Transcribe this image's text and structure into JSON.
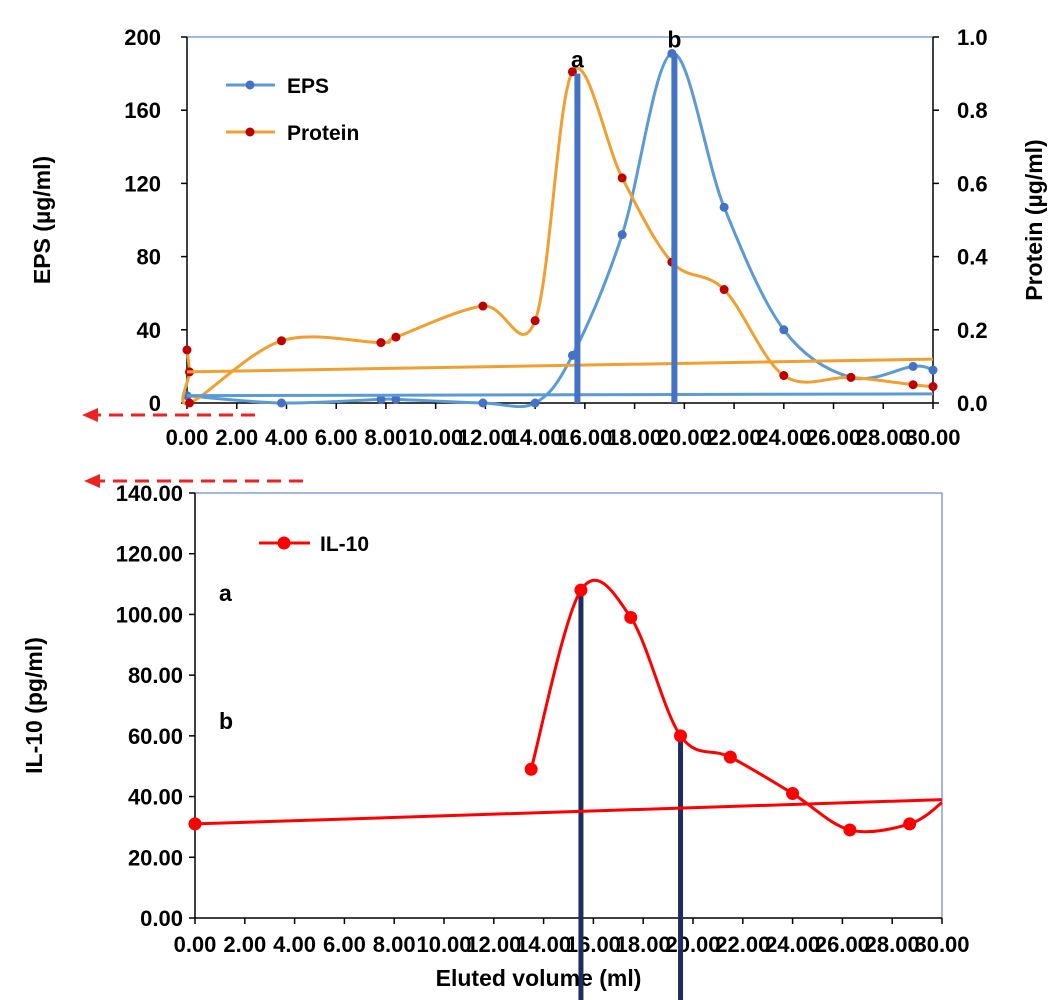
{
  "chart_data": [
    {
      "type": "line",
      "x_ticks": [
        "0.00",
        "2.00",
        "4.00",
        "6.00",
        "8.00",
        "10.00",
        "12.00",
        "14.00",
        "16.00",
        "18.00",
        "20.00",
        "22.00",
        "24.00",
        "26.00",
        "28.00",
        "30.00"
      ],
      "xlim": [
        0,
        30
      ],
      "ylabel": "EPS (µg/ml)",
      "ylim": [
        0,
        200
      ],
      "y_ticks": [
        "0",
        "40",
        "80",
        "120",
        "160",
        "200"
      ],
      "y2label": "Protein (µg/ml)",
      "y2lim": [
        0,
        1
      ],
      "y2_ticks": [
        "0.0",
        "0.2",
        "0.4",
        "0.6",
        "0.8",
        "1.0"
      ],
      "legend_position": "top-left",
      "grid": false,
      "series": [
        {
          "name": "EPS",
          "axis": "left",
          "color": "#5b9bd5",
          "x": [
            0,
            3.8,
            7.8,
            8.4,
            11.9,
            14.0,
            15.5,
            17.5,
            19.5,
            21.6,
            24.0,
            26.7,
            29.2,
            30.0
          ],
          "y": [
            4,
            0,
            2,
            2,
            0,
            0,
            26,
            92,
            191,
            107,
            40,
            14,
            20,
            18
          ]
        },
        {
          "name": "Protein",
          "axis": "right",
          "color": "#f0a030",
          "x": [
            0,
            0.1,
            0.1,
            3.8,
            7.8,
            8.4,
            11.9,
            14.0,
            15.5,
            17.5,
            19.5,
            21.6,
            24.0,
            26.7,
            29.2,
            30.0
          ],
          "y": [
            0.145,
            0.085,
            0.0,
            0.17,
            0.165,
            0.18,
            0.265,
            0.225,
            0.905,
            0.615,
            0.385,
            0.31,
            0.075,
            0.07,
            0.05,
            0.045
          ]
        },
        {
          "axis": "left",
          "color": "#5b9bd5",
          "x": [
            0,
            30
          ],
          "y": [
            4,
            5
          ]
        },
        {
          "axis": "right",
          "color": "#f0a030",
          "x": [
            0,
            30
          ],
          "y": [
            0.085,
            0.12
          ]
        }
      ],
      "markers": [
        {
          "label": "a",
          "x": 15.7,
          "y": 180
        },
        {
          "label": "b",
          "x": 19.6,
          "y": 191
        }
      ]
    },
    {
      "type": "line",
      "x_ticks": [
        "0.00",
        "2.00",
        "4.00",
        "6.00",
        "8.00",
        "10.00",
        "12.00",
        "14.00",
        "16.00",
        "18.00",
        "20.00",
        "22.00",
        "24.00",
        "26.00",
        "28.00",
        "30.00"
      ],
      "xlim": [
        0,
        30
      ],
      "xlabel": "Eluted volume (ml)",
      "ylabel": "IL-10 (pg/ml)",
      "ylim": [
        0,
        140
      ],
      "y_ticks": [
        "0.00",
        "20.00",
        "40.00",
        "60.00",
        "80.00",
        "100.00",
        "120.00",
        "140.00"
      ],
      "legend_position": "top-left",
      "grid": false,
      "series": [
        {
          "name": "IL-10",
          "color": "#ff0000",
          "x": [
            13.5,
            15.5,
            17.5,
            19.5,
            21.5,
            24.0,
            26.3,
            28.7,
            30.0
          ],
          "y": [
            49,
            108,
            99,
            60,
            53,
            41,
            29,
            31,
            38
          ]
        },
        {
          "color": "#ff0000",
          "x": [
            0,
            30
          ],
          "y": [
            31,
            39
          ]
        }
      ],
      "markers": [
        {
          "label": "a",
          "x": 15.5,
          "y": 108
        },
        {
          "label": "b",
          "x": 19.5,
          "y": 60
        }
      ],
      "side_labels": [
        "a",
        "b"
      ]
    }
  ]
}
